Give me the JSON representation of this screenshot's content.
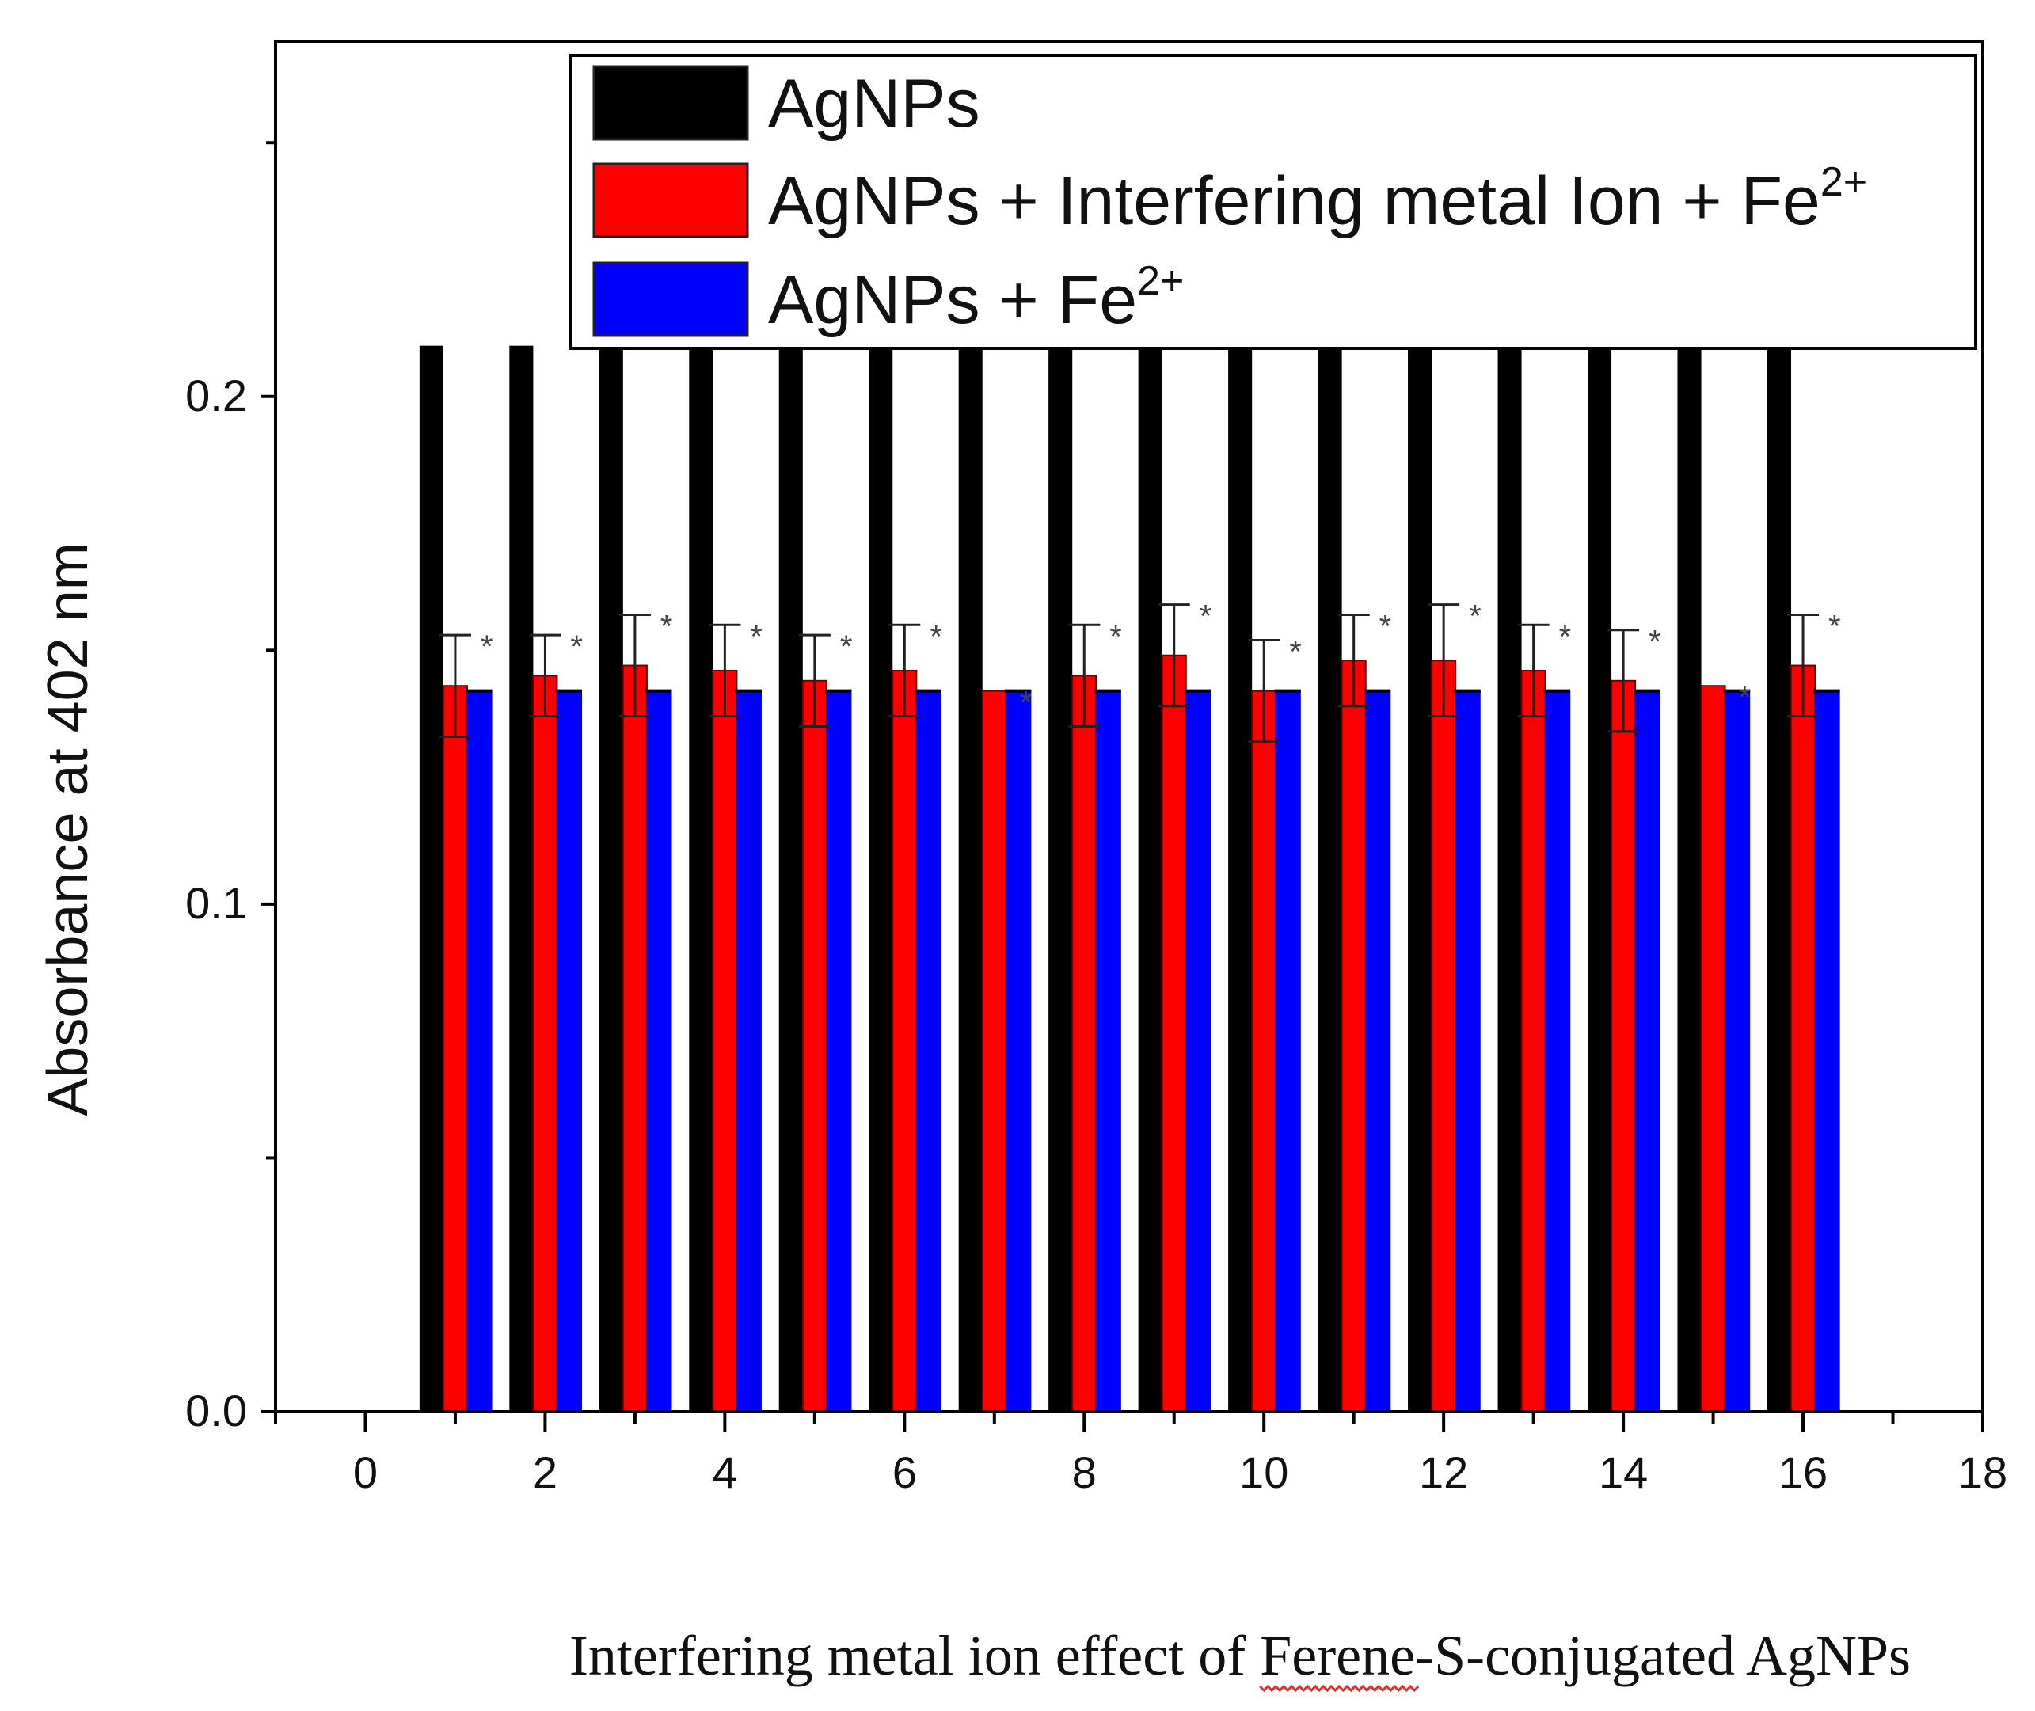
{
  "chart_data": {
    "type": "bar",
    "title": "",
    "xlabel": "Interfering metal ion effect of Ferene-S-conjugated AgNPs",
    "xlabel_misspelled_word": "Ferene",
    "ylabel": "Absorbance at 402 nm",
    "xlim": [
      -1,
      18
    ],
    "ylim": [
      0,
      0.27
    ],
    "x_ticks": [
      0,
      2,
      4,
      6,
      8,
      10,
      12,
      14,
      16,
      18
    ],
    "x_tick_labels": [
      "0",
      "2",
      "4",
      "6",
      "8",
      "10",
      "12",
      "14",
      "16",
      "18"
    ],
    "y_ticks": [
      0.0,
      0.05,
      0.1,
      0.15,
      0.2,
      0.25
    ],
    "y_tick_labels": [
      "0.0",
      "",
      "0.1",
      "",
      "0.2",
      ""
    ],
    "categories": [
      1,
      2,
      3,
      4,
      5,
      6,
      7,
      8,
      9,
      10,
      11,
      12,
      13,
      14,
      15,
      16
    ],
    "series": [
      {
        "name": "AgNPs",
        "color": "#000000",
        "values": [
          0.21,
          0.21,
          0.21,
          0.21,
          0.21,
          0.21,
          0.21,
          0.21,
          0.21,
          0.21,
          0.21,
          0.21,
          0.21,
          0.21,
          0.21,
          0.21
        ]
      },
      {
        "name": "AgNPs + Interfering metal Ion + Fe",
        "superscript": "2+",
        "color": "#ff0000",
        "values": [
          0.143,
          0.145,
          0.147,
          0.146,
          0.144,
          0.146,
          0.142,
          0.145,
          0.149,
          0.142,
          0.148,
          0.148,
          0.146,
          0.144,
          0.143,
          0.147
        ],
        "errors": [
          0.01,
          0.008,
          0.01,
          0.009,
          0.009,
          0.009,
          0.0,
          0.01,
          0.01,
          0.01,
          0.009,
          0.011,
          0.009,
          0.01,
          0.0,
          0.01
        ],
        "annotations": [
          "*",
          "*",
          "*",
          "*",
          "*",
          "*",
          "*",
          "*",
          "*",
          "*",
          "*",
          "*",
          "*",
          "*",
          "*",
          "*"
        ]
      },
      {
        "name": "AgNPs + Fe",
        "superscript": "2+",
        "color": "#0000ff",
        "values": [
          0.142,
          0.142,
          0.142,
          0.142,
          0.142,
          0.142,
          0.142,
          0.142,
          0.142,
          0.142,
          0.142,
          0.142,
          0.142,
          0.142,
          0.142,
          0.142
        ]
      }
    ],
    "legend_placement": "top-right",
    "grid": false
  }
}
